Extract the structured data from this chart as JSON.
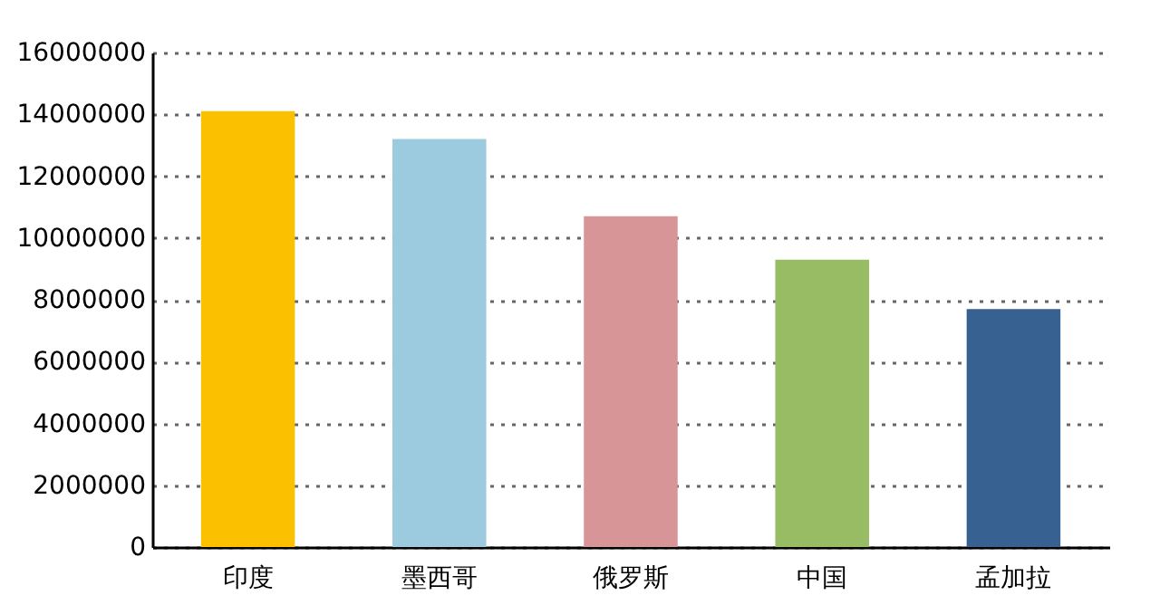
{
  "chart_data": {
    "type": "bar",
    "categories": [
      "印度",
      "墨西哥",
      "俄罗斯",
      "中国",
      "孟加拉"
    ],
    "values": [
      14100000,
      13200000,
      10700000,
      9300000,
      7700000
    ],
    "colors": [
      "#fbc000",
      "#9ccbdf",
      "#d79598",
      "#97bc63",
      "#366190"
    ],
    "ylim": [
      0,
      16000000
    ],
    "yticks": [
      0,
      2000000,
      4000000,
      6000000,
      8000000,
      10000000,
      12000000,
      14000000,
      16000000
    ],
    "grid": "y",
    "legend": false
  }
}
